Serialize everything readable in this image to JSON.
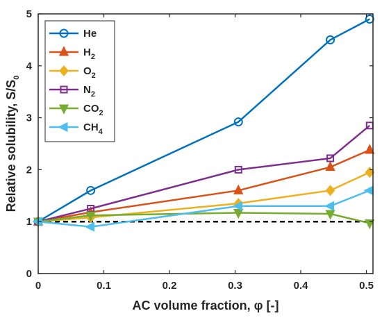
{
  "chart_data": {
    "type": "line",
    "xlabel": "AC volume fraction, φ [-]",
    "ylabel": "Relative solubility, S/S",
    "ylabel_subscript": "0",
    "xlim": [
      0,
      0.51
    ],
    "ylim": [
      0,
      5
    ],
    "xticks": [
      "0",
      "0.1",
      "0.2",
      "0.3",
      "0.4",
      "0.5"
    ],
    "yticks": [
      "0",
      "1",
      "2",
      "3",
      "4",
      "5"
    ],
    "grid": false,
    "legend_position": "top-left",
    "reference_line": {
      "y": 1,
      "style": "dashed",
      "color": "#000000"
    },
    "series": [
      {
        "name": "He",
        "subscript": "",
        "color": "#0072BD",
        "marker": "circle",
        "x": [
          0,
          0.08,
          0.305,
          0.445,
          0.505
        ],
        "y": [
          1.0,
          1.6,
          2.92,
          4.5,
          4.9
        ]
      },
      {
        "name": "H",
        "subscript": "2",
        "color": "#D95319",
        "marker": "triangle-up",
        "x": [
          0,
          0.08,
          0.305,
          0.445,
          0.505
        ],
        "y": [
          1.0,
          1.18,
          1.6,
          2.05,
          2.38
        ]
      },
      {
        "name": "O",
        "subscript": "2",
        "color": "#EDB120",
        "marker": "diamond",
        "x": [
          0,
          0.08,
          0.305,
          0.445,
          0.505
        ],
        "y": [
          1.0,
          1.08,
          1.35,
          1.6,
          1.95
        ]
      },
      {
        "name": "N",
        "subscript": "2",
        "color": "#7E2F8E",
        "marker": "square",
        "x": [
          0,
          0.08,
          0.305,
          0.445,
          0.505
        ],
        "y": [
          1.0,
          1.25,
          2.0,
          2.22,
          2.85
        ]
      },
      {
        "name": "CO",
        "subscript": "2",
        "color": "#77AC30",
        "marker": "triangle-down",
        "x": [
          0,
          0.08,
          0.305,
          0.445,
          0.505
        ],
        "y": [
          1.0,
          1.12,
          1.17,
          1.15,
          0.97
        ]
      },
      {
        "name": "CH",
        "subscript": "4",
        "color": "#4DBEEE",
        "marker": "triangle-left",
        "x": [
          0,
          0.08,
          0.305,
          0.445,
          0.505
        ],
        "y": [
          1.0,
          0.9,
          1.3,
          1.3,
          1.6
        ]
      }
    ]
  }
}
